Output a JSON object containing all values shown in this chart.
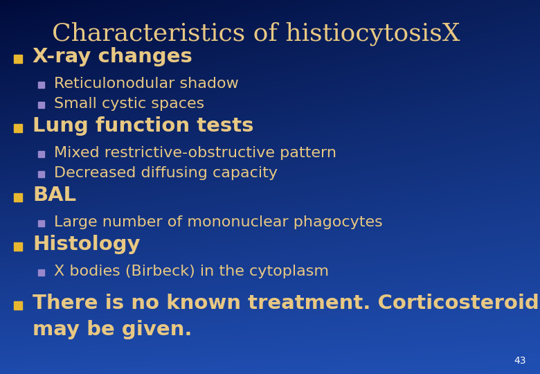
{
  "title": "Characteristics of histiocytosisX",
  "title_color": "#E8C882",
  "title_fontsize": 26,
  "bg_top_color": "#000B3A",
  "bg_bottom_color": "#1E4BAD",
  "bullet1_color": "#E8B830",
  "bullet2_color": "#9988CC",
  "text1_color": "#E8C882",
  "text2_color": "#E8C882",
  "page_number": "43",
  "items": [
    {
      "level": 1,
      "text": "X-ray changes",
      "fontsize": 21,
      "bold": true
    },
    {
      "level": 2,
      "text": "Reticulonodular shadow",
      "fontsize": 16,
      "bold": false
    },
    {
      "level": 2,
      "text": "Small cystic spaces",
      "fontsize": 16,
      "bold": false
    },
    {
      "level": 1,
      "text": "Lung function tests",
      "fontsize": 21,
      "bold": true
    },
    {
      "level": 2,
      "text": "Mixed restrictive-obstructive pattern",
      "fontsize": 16,
      "bold": false
    },
    {
      "level": 2,
      "text": "Decreased diffusing capacity",
      "fontsize": 16,
      "bold": false
    },
    {
      "level": 1,
      "text": "BAL",
      "fontsize": 21,
      "bold": true
    },
    {
      "level": 2,
      "text": "Large number of mononuclear phagocytes",
      "fontsize": 16,
      "bold": false
    },
    {
      "level": 1,
      "text": "Histology",
      "fontsize": 21,
      "bold": true
    },
    {
      "level": 2,
      "text": "X bodies (Birbeck) in the cytoplasm",
      "fontsize": 16,
      "bold": false
    }
  ],
  "footer": {
    "line1": "There is no known treatment. Corticosteroids",
    "line2": "may be given.",
    "fontsize": 21,
    "bold": true
  }
}
